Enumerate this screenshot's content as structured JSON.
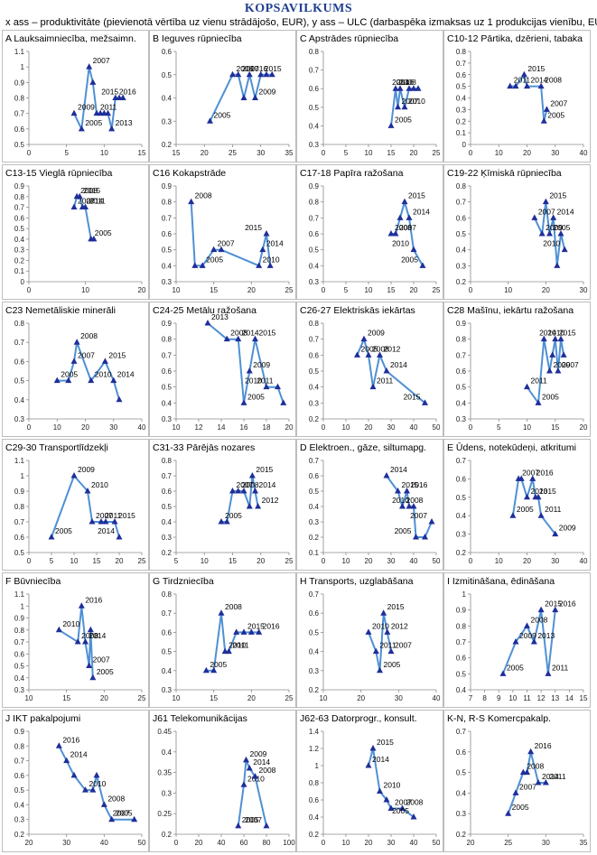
{
  "page": {
    "title": "KOPSAVILKUMS",
    "subtitle": "x ass – produktivitāte (pievienotā vērtība uz vienu strādājošo, EUR), y ass – ULC (darbaspēka izmaksas uz 1 produkcijas vienību, EUR)"
  },
  "colors": {
    "line": "#4f90d4",
    "marker": "#1f2e99",
    "title": "#1f3f8f",
    "frame": "#bdbdbd"
  },
  "chart_data": [
    {
      "type": "line",
      "title": "A Lauksaimniecība, mežsaimn.",
      "xlim": [
        0,
        15
      ],
      "ylim": [
        0.5,
        1.1
      ],
      "xticks": [
        0,
        5,
        10,
        15
      ],
      "yticks": [
        0.5,
        0.6,
        0.7,
        0.8,
        0.9,
        1.0,
        1.1
      ],
      "x": [
        6,
        7,
        8,
        8.5,
        9,
        9.5,
        10,
        10.5,
        11,
        11.5,
        12,
        12.5
      ],
      "y": [
        0.7,
        0.6,
        1.0,
        0.9,
        0.7,
        0.7,
        0.7,
        0.7,
        0.6,
        0.8,
        0.8,
        0.8
      ],
      "point_labels": [
        "2009",
        "2005",
        "2007",
        "",
        "2011",
        "",
        "",
        "",
        "2013",
        "2016",
        "",
        "2015"
      ]
    },
    {
      "type": "line",
      "title": "B Ieguves rūpniecība",
      "xlim": [
        15,
        35
      ],
      "ylim": [
        0.2,
        0.6
      ],
      "xticks": [
        15,
        20,
        25,
        30,
        35
      ],
      "yticks": [
        0.2,
        0.3,
        0.4,
        0.5,
        0.6
      ],
      "x": [
        21,
        25,
        26,
        27,
        28,
        29,
        30,
        31,
        32
      ],
      "y": [
        0.3,
        0.5,
        0.5,
        0.4,
        0.5,
        0.4,
        0.5,
        0.5,
        0.5
      ],
      "point_labels": [
        "2005",
        "2008",
        "2007",
        "",
        "",
        "2009",
        "2015",
        "",
        "2016"
      ]
    },
    {
      "type": "line",
      "title": "C Apstrādes rūpniecība",
      "xlim": [
        0,
        25
      ],
      "ylim": [
        0.3,
        0.8
      ],
      "xticks": [
        0,
        5,
        10,
        15,
        20,
        25
      ],
      "yticks": [
        0.3,
        0.4,
        0.5,
        0.6,
        0.7,
        0.8
      ],
      "x": [
        15,
        16,
        16.5,
        17,
        18,
        19,
        20,
        21
      ],
      "y": [
        0.4,
        0.6,
        0.5,
        0.6,
        0.5,
        0.6,
        0.6,
        0.6
      ],
      "point_labels": [
        "2005",
        "2008",
        "2007",
        "",
        "2010",
        "",
        "2014",
        "2016"
      ]
    },
    {
      "type": "line",
      "title": "C10-12 Pārtika, dzērieni, tabaka",
      "xlim": [
        0,
        40
      ],
      "ylim": [
        0,
        0.8
      ],
      "xticks": [
        0,
        10,
        20,
        30,
        40
      ],
      "yticks": [
        0,
        0.1,
        0.2,
        0.3,
        0.4,
        0.5,
        0.6,
        0.7,
        0.8
      ],
      "x": [
        14,
        16,
        19,
        20,
        25,
        26,
        27
      ],
      "y": [
        0.5,
        0.5,
        0.6,
        0.5,
        0.5,
        0.2,
        0.3
      ],
      "point_labels": [
        "2011",
        "",
        "2015",
        "2014",
        "2008",
        "2005",
        "2007"
      ]
    },
    {
      "type": "line",
      "title": "C13-15 Vieglā rūpniecība",
      "xlim": [
        0,
        20
      ],
      "ylim": [
        0,
        0.9
      ],
      "xticks": [
        0,
        10,
        20
      ],
      "yticks": [
        0,
        0.1,
        0.2,
        0.3,
        0.4,
        0.5,
        0.6,
        0.7,
        0.8,
        0.9
      ],
      "x": [
        8,
        8.5,
        9,
        9.5,
        10,
        11,
        11.5
      ],
      "y": [
        0.7,
        0.8,
        0.8,
        0.7,
        0.7,
        0.4,
        0.4
      ],
      "point_labels": [
        "2007",
        "2008",
        "2015",
        "2014",
        "2011",
        "2005",
        ""
      ]
    },
    {
      "type": "line",
      "title": "C16 Kokapstrāde",
      "xlim": [
        10,
        25
      ],
      "ylim": [
        0.3,
        0.9
      ],
      "xticks": [
        10,
        15,
        20,
        25
      ],
      "yticks": [
        0.3,
        0.4,
        0.5,
        0.6,
        0.7,
        0.8,
        0.9
      ],
      "x": [
        12,
        12.5,
        13.5,
        15,
        16,
        21,
        21.5,
        22,
        22.5
      ],
      "y": [
        0.8,
        0.4,
        0.4,
        0.5,
        0.5,
        0.4,
        0.5,
        0.6,
        0.4
      ],
      "point_labels": [
        "2008",
        "",
        "2005",
        "2007",
        "",
        "2010",
        "2014",
        "2015",
        ""
      ]
    },
    {
      "type": "line",
      "title": "C17-18 Papīra ražošana",
      "xlim": [
        0,
        25
      ],
      "ylim": [
        0.3,
        0.9
      ],
      "xticks": [
        0,
        5,
        10,
        15,
        20,
        25
      ],
      "yticks": [
        0.3,
        0.4,
        0.5,
        0.6,
        0.7,
        0.8,
        0.9
      ],
      "x": [
        15,
        16,
        17,
        18,
        19,
        20,
        22
      ],
      "y": [
        0.6,
        0.6,
        0.7,
        0.8,
        0.7,
        0.5,
        0.4
      ],
      "point_labels": [
        "2008",
        "2007",
        "",
        "2015",
        "2014",
        "2010",
        "2005"
      ]
    },
    {
      "type": "line",
      "title": "C19-22 Ķīmiskā rūpniecība",
      "xlim": [
        0,
        30
      ],
      "ylim": [
        0.2,
        0.8
      ],
      "xticks": [
        0,
        10,
        20,
        30
      ],
      "yticks": [
        0.2,
        0.3,
        0.4,
        0.5,
        0.6,
        0.7,
        0.8
      ],
      "x": [
        17,
        19,
        20,
        21,
        22,
        23,
        24,
        25
      ],
      "y": [
        0.6,
        0.5,
        0.7,
        0.5,
        0.6,
        0.3,
        0.5,
        0.4
      ],
      "point_labels": [
        "2007",
        "2009",
        "2015",
        "2005",
        "2014",
        "",
        "",
        "2010"
      ]
    },
    {
      "type": "line",
      "title": "C23 Nemetāliskie minerāli",
      "xlim": [
        0,
        40
      ],
      "ylim": [
        0.3,
        0.8
      ],
      "xticks": [
        0,
        10,
        20,
        30,
        40
      ],
      "yticks": [
        0.3,
        0.4,
        0.5,
        0.6,
        0.7,
        0.8
      ],
      "x": [
        10,
        14,
        16,
        17,
        22,
        27,
        30,
        32
      ],
      "y": [
        0.5,
        0.5,
        0.6,
        0.7,
        0.5,
        0.6,
        0.5,
        0.4
      ],
      "point_labels": [
        "2005",
        "",
        "2007",
        "2008",
        "2010",
        "2015",
        "2014",
        ""
      ]
    },
    {
      "type": "line",
      "title": "C24-25 Metālu ražošana",
      "xlim": [
        10,
        20
      ],
      "ylim": [
        0.3,
        0.9
      ],
      "xticks": [
        10,
        12,
        14,
        16,
        18,
        20
      ],
      "yticks": [
        0.3,
        0.4,
        0.5,
        0.6,
        0.7,
        0.8,
        0.9
      ],
      "x": [
        12.8,
        14.5,
        15.5,
        16,
        16.5,
        17,
        18,
        19,
        19.5
      ],
      "y": [
        0.9,
        0.8,
        0.8,
        0.4,
        0.6,
        0.8,
        0.5,
        0.5,
        0.4
      ],
      "point_labels": [
        "2013",
        "2008",
        "2014",
        "2005",
        "2009",
        "2015",
        "2010",
        "2011",
        ""
      ]
    },
    {
      "type": "line",
      "title": "C26-27 Elektriskās iekārtas",
      "xlim": [
        0,
        50
      ],
      "ylim": [
        0.2,
        0.8
      ],
      "xticks": [
        0,
        10,
        20,
        30,
        40,
        50
      ],
      "yticks": [
        0.2,
        0.3,
        0.4,
        0.5,
        0.6,
        0.7,
        0.8
      ],
      "x": [
        15,
        18,
        20,
        22,
        25,
        28,
        45
      ],
      "y": [
        0.6,
        0.7,
        0.6,
        0.4,
        0.6,
        0.5,
        0.3
      ],
      "point_labels": [
        "2005",
        "2009",
        "2008",
        "2011",
        "2012",
        "2014",
        "2015"
      ]
    },
    {
      "type": "line",
      "title": "C28 Mašīnu, iekārtu ražošana",
      "xlim": [
        0,
        20
      ],
      "ylim": [
        0.3,
        0.9
      ],
      "xticks": [
        0,
        5,
        10,
        15,
        20
      ],
      "yticks": [
        0.3,
        0.4,
        0.5,
        0.6,
        0.7,
        0.8,
        0.9
      ],
      "x": [
        10,
        12,
        13,
        14,
        14.5,
        15,
        15.5,
        16,
        16.5
      ],
      "y": [
        0.5,
        0.4,
        0.8,
        0.6,
        0.7,
        0.8,
        0.6,
        0.8,
        0.7
      ],
      "point_labels": [
        "2011",
        "2005",
        "2010",
        "2009",
        "",
        "2015",
        "2007",
        "2014",
        ""
      ]
    },
    {
      "type": "line",
      "title": "C29-30 Transportlīdzekļi",
      "xlim": [
        0,
        25
      ],
      "ylim": [
        0.5,
        1.1
      ],
      "xticks": [
        0,
        5,
        10,
        15,
        20,
        25
      ],
      "yticks": [
        0.5,
        0.6,
        0.7,
        0.8,
        0.9,
        1.0,
        1.1
      ],
      "x": [
        5,
        10,
        13,
        14,
        16,
        17,
        19,
        20
      ],
      "y": [
        0.6,
        1.0,
        0.9,
        0.7,
        0.7,
        0.7,
        0.7,
        0.6
      ],
      "point_labels": [
        "2005",
        "2009",
        "2010",
        "2007",
        "2011",
        "",
        "2015",
        "2014"
      ]
    },
    {
      "type": "line",
      "title": "C31-33 Pārējās nozares",
      "xlim": [
        5,
        25
      ],
      "ylim": [
        0.2,
        0.8
      ],
      "xticks": [
        5,
        10,
        15,
        20,
        25
      ],
      "yticks": [
        0.2,
        0.3,
        0.4,
        0.5,
        0.6,
        0.7,
        0.8
      ],
      "x": [
        13,
        14,
        15,
        16,
        17,
        18,
        18.5,
        19,
        19.5
      ],
      "y": [
        0.4,
        0.4,
        0.6,
        0.6,
        0.6,
        0.5,
        0.7,
        0.6,
        0.5
      ],
      "point_labels": [
        "2005",
        "",
        "2007",
        "2008",
        "",
        "",
        "2015",
        "2014",
        "2012"
      ]
    },
    {
      "type": "line",
      "title": "D Elektroen., gāze, siltumapg.",
      "xlim": [
        0,
        50
      ],
      "ylim": [
        0.1,
        0.7
      ],
      "xticks": [
        0,
        10,
        20,
        30,
        40,
        50
      ],
      "yticks": [
        0.1,
        0.2,
        0.3,
        0.4,
        0.5,
        0.6,
        0.7
      ],
      "x": [
        28,
        33,
        35,
        37,
        38,
        40,
        41,
        45,
        48
      ],
      "y": [
        0.6,
        0.5,
        0.4,
        0.5,
        0.4,
        0.4,
        0.2,
        0.2,
        0.3
      ],
      "point_labels": [
        "2014",
        "2015",
        "2008",
        "2016",
        "",
        "2010",
        "2005",
        "",
        "2007"
      ]
    },
    {
      "type": "line",
      "title": "E Ūdens, notekūdeņi, atkritumi",
      "xlim": [
        0,
        40
      ],
      "ylim": [
        0.2,
        0.7
      ],
      "xticks": [
        0,
        10,
        20,
        30,
        40
      ],
      "yticks": [
        0.2,
        0.3,
        0.4,
        0.5,
        0.6,
        0.7
      ],
      "x": [
        15,
        17,
        18,
        20,
        22,
        23,
        24,
        25,
        30
      ],
      "y": [
        0.4,
        0.6,
        0.6,
        0.5,
        0.6,
        0.5,
        0.5,
        0.4,
        0.3
      ],
      "point_labels": [
        "2005",
        "2007",
        "",
        "2013",
        "2016",
        "2015",
        "",
        "2011",
        "2009"
      ]
    },
    {
      "type": "line",
      "title": "F Būvniecība",
      "xlim": [
        10,
        25
      ],
      "ylim": [
        0.3,
        1.1
      ],
      "xticks": [
        10,
        15,
        20,
        25
      ],
      "yticks": [
        0.3,
        0.4,
        0.5,
        0.6,
        0.7,
        0.8,
        0.9,
        1.0,
        1.1
      ],
      "x": [
        14,
        16.5,
        17,
        17.5,
        18,
        18.2,
        18.5
      ],
      "y": [
        0.8,
        0.7,
        1.0,
        0.7,
        0.5,
        0.8,
        0.4
      ],
      "point_labels": [
        "2010",
        "2008",
        "2016",
        "2014",
        "2007",
        "",
        "2005"
      ]
    },
    {
      "type": "line",
      "title": "G Tirdzniecība",
      "xlim": [
        10,
        25
      ],
      "ylim": [
        0.3,
        0.8
      ],
      "xticks": [
        10,
        15,
        20,
        25
      ],
      "yticks": [
        0.3,
        0.4,
        0.5,
        0.6,
        0.7,
        0.8
      ],
      "x": [
        14,
        15,
        16,
        16.5,
        17,
        18,
        19,
        20,
        21
      ],
      "y": [
        0.4,
        0.4,
        0.7,
        0.5,
        0.5,
        0.6,
        0.6,
        0.6,
        0.6
      ],
      "point_labels": [
        "2005",
        "",
        "2008",
        "2010",
        "2011",
        "",
        "2015",
        "",
        "2016"
      ]
    },
    {
      "type": "line",
      "title": "H Transports, uzglabāšana",
      "xlim": [
        10,
        40
      ],
      "ylim": [
        0.2,
        0.7
      ],
      "xticks": [
        10,
        20,
        30,
        40
      ],
      "yticks": [
        0.2,
        0.3,
        0.4,
        0.5,
        0.6,
        0.7
      ],
      "x": [
        22,
        24,
        25,
        26,
        27,
        28
      ],
      "y": [
        0.5,
        0.4,
        0.3,
        0.6,
        0.5,
        0.4
      ],
      "point_labels": [
        "2010",
        "2011",
        "2005",
        "2015",
        "2012",
        "2007"
      ]
    },
    {
      "type": "line",
      "title": "I Izmitināšana, ēdināšana",
      "xlim": [
        7,
        15
      ],
      "ylim": [
        0.4,
        1.0
      ],
      "xticks": [
        7,
        8,
        9,
        10,
        11,
        12,
        13,
        14,
        15
      ],
      "yticks": [
        0.4,
        0.5,
        0.6,
        0.7,
        0.8,
        0.9,
        1.0
      ],
      "x": [
        9.3,
        10.2,
        11,
        11.5,
        12,
        12.5,
        13
      ],
      "y": [
        0.5,
        0.7,
        0.8,
        0.7,
        0.9,
        0.5,
        0.9
      ],
      "point_labels": [
        "2005",
        "2009",
        "2008",
        "2013",
        "2015",
        "2011",
        "2016"
      ]
    },
    {
      "type": "line",
      "title": "J IKT pakalpojumi",
      "xlim": [
        20,
        50
      ],
      "ylim": [
        0.2,
        0.9
      ],
      "xticks": [
        20,
        30,
        40,
        50
      ],
      "yticks": [
        0.2,
        0.3,
        0.4,
        0.5,
        0.6,
        0.7,
        0.8,
        0.9
      ],
      "x": [
        28,
        30,
        32,
        35,
        37,
        38,
        40,
        42,
        48
      ],
      "y": [
        0.8,
        0.7,
        0.6,
        0.5,
        0.5,
        0.6,
        0.4,
        0.3,
        0.3
      ],
      "point_labels": [
        "2016",
        "2014",
        "",
        "2010",
        "",
        "",
        "2008",
        "2005",
        "2007"
      ]
    },
    {
      "type": "line",
      "title": "J61 Telekomunikācijas",
      "xlim": [
        0,
        100
      ],
      "ylim": [
        0.2,
        0.45
      ],
      "xticks": [
        0,
        20,
        40,
        60,
        80,
        100
      ],
      "yticks": [
        0.2,
        0.25,
        0.3,
        0.35,
        0.4,
        0.45
      ],
      "x": [
        55,
        60,
        62,
        65,
        70,
        80
      ],
      "y": [
        0.22,
        0.32,
        0.38,
        0.36,
        0.34,
        0.22
      ],
      "point_labels": [
        "2005",
        "2010",
        "2009",
        "2014",
        "2008",
        "2007"
      ]
    },
    {
      "type": "line",
      "title": "J62-63 Datorprogr., konsult.",
      "xlim": [
        0,
        50
      ],
      "ylim": [
        0.2,
        1.4
      ],
      "xticks": [
        0,
        10,
        20,
        30,
        40,
        50
      ],
      "yticks": [
        0.2,
        0.4,
        0.6,
        0.8,
        1.0,
        1.2,
        1.4
      ],
      "x": [
        20,
        22,
        25,
        28,
        30,
        35,
        40
      ],
      "y": [
        1.0,
        1.2,
        0.7,
        0.6,
        0.5,
        0.5,
        0.4
      ],
      "point_labels": [
        "2014",
        "2015",
        "2010",
        "",
        "2007",
        "2008",
        "2005"
      ]
    },
    {
      "type": "line",
      "title": "K-N, R-S Komercpakalp.",
      "xlim": [
        20,
        35
      ],
      "ylim": [
        0.2,
        0.7
      ],
      "xticks": [
        20,
        25,
        30,
        35
      ],
      "yticks": [
        0.2,
        0.3,
        0.4,
        0.5,
        0.6,
        0.7
      ],
      "x": [
        25,
        26,
        27,
        27.5,
        28,
        29,
        30
      ],
      "y": [
        0.3,
        0.4,
        0.5,
        0.5,
        0.6,
        0.45,
        0.45
      ],
      "point_labels": [
        "2005",
        "2007",
        "2008",
        "",
        "2016",
        "2014",
        "2011"
      ]
    }
  ]
}
